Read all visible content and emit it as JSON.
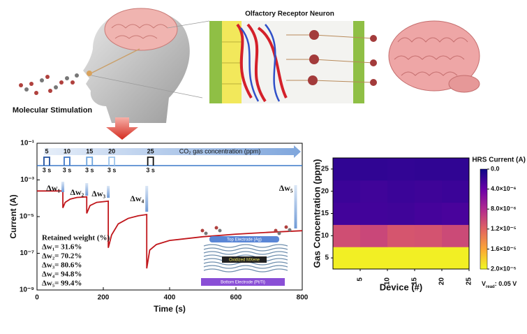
{
  "header": {
    "title": "Olfactory Receptor Neuron",
    "stimulus_label": "Molecular Stimulation"
  },
  "chart_data": [
    {
      "type": "line",
      "x_label": "Time (s)",
      "y_label": "Current (A)",
      "x": [
        0,
        78,
        78,
        85,
        100,
        120,
        150,
        150,
        160,
        180,
        215,
        215,
        225,
        245,
        275,
        305,
        331,
        331,
        340,
        360,
        400,
        500,
        600,
        700,
        800
      ],
      "series": [
        {
          "color": "#c0161b",
          "values": [
            0.00025,
            0.00025,
            3e-05,
            6e-05,
            9e-05,
            0.00011,
            0.00012,
            1.5e-05,
            4e-05,
            6e-05,
            7e-05,
            2e-07,
            1e-06,
            4e-06,
            8e-06,
            1.1e-05,
            1.3e-05,
            1.5e-08,
            1.5e-07,
            3e-07,
            5e-07,
            8e-07,
            1.1e-06,
            1.4e-06,
            1.7e-06
          ]
        }
      ],
      "xlim": [
        0,
        800
      ],
      "xticks": [
        0,
        200,
        400,
        600,
        800
      ],
      "ylim": [
        1e-09,
        0.1
      ],
      "log_y": true,
      "yticks": [
        {
          "value": 1e-09,
          "label": "10⁻⁹"
        },
        {
          "value": 1e-07,
          "label": "10⁻⁷"
        },
        {
          "value": 1e-05,
          "label": "10⁻⁵"
        },
        {
          "value": 0.001,
          "label": "10⁻³"
        },
        {
          "value": 0.1,
          "label": "10⁻¹"
        }
      ],
      "pulses": {
        "x": [
          21,
          82,
          150,
          217,
          334
        ],
        "labels": [
          "5",
          "10",
          "15",
          "20",
          "25"
        ],
        "duration_label": "3 s",
        "gas_label": "CO₂ gas concentration (ppm)"
      },
      "drops": {
        "labels": [
          "Δw₁",
          "Δw₂",
          "Δw₃",
          "Δw₄",
          "Δw₅"
        ],
        "x": [
          78,
          150,
          215,
          331,
          780
        ]
      },
      "retained_title": "Retained weight (%)",
      "retained": [
        "Δw₁= 31.6%",
        "Δw₂= 70.2%",
        "Δw₃= 80.6%",
        "Δw₄= 94.8%",
        "Δw₅= 99.4%"
      ],
      "inset": {
        "top": "Top Electrode (Ag)",
        "middle": "Oxidized MXene",
        "bottom": "Bottom Electrode (Pt/Ti)"
      }
    },
    {
      "type": "heatmap",
      "x_label": "Device (#)",
      "y_label": "Gas Concentration (ppm)",
      "x_edges": [
        0,
        5,
        10,
        15,
        20,
        25
      ],
      "xlim": [
        0,
        25
      ],
      "xticks": [
        5,
        10,
        15,
        20,
        25
      ],
      "y": [
        5,
        10,
        15,
        20,
        25
      ],
      "ylim": [
        2.5,
        27.5
      ],
      "yticks": [
        5,
        10,
        15,
        20,
        25
      ],
      "z": [
        [
          1.95e-05,
          1.95e-05,
          1.95e-05,
          1.95e-05,
          1.95e-05
        ],
        [
          1.05e-05,
          1e-05,
          1.1e-05,
          1.08e-05,
          1.02e-05
        ],
        [
          2.3e-06,
          2.3e-06,
          2.2e-06,
          2.4e-06,
          2.6e-06
        ],
        [
          2e-06,
          2.2e-06,
          2e-06,
          2.1e-06,
          2e-06
        ],
        [
          1.5e-06,
          1.5e-06,
          1.6e-06,
          1.5e-06,
          1.5e-06
        ]
      ],
      "colorbar": {
        "title": "HRS Current (A)",
        "lim": [
          0,
          2e-05
        ],
        "ticks": [
          {
            "value": 0,
            "label": "0.0"
          },
          {
            "value": 4e-06,
            "label": "4.0×10⁻⁶"
          },
          {
            "value": 8e-06,
            "label": "8.0×10⁻⁶"
          },
          {
            "value": 1.2e-05,
            "label": "1.2×10⁻⁵"
          },
          {
            "value": 1.6e-05,
            "label": "1.6×10⁻⁵"
          },
          {
            "value": 2e-05,
            "label": "2.0×10⁻⁵"
          }
        ],
        "colors": [
          "#0d0887",
          "#6a00a8",
          "#b12a90",
          "#e16462",
          "#fca636",
          "#f0f921"
        ]
      },
      "note": {
        "symbol": "V",
        "subscript": "read",
        "text": ": 0.05 V"
      }
    }
  ]
}
